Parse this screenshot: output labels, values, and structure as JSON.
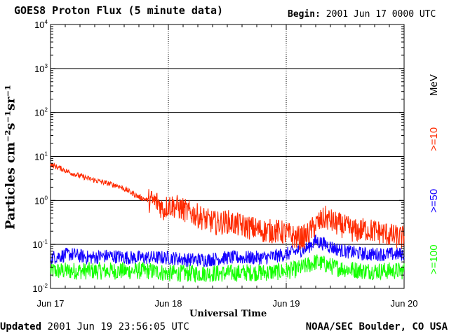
{
  "header": {
    "title": "GOES8 Proton Flux (5 minute data)",
    "begin_label": "Begin:",
    "begin_value": "2001 Jun 17 0000 UTC"
  },
  "footer": {
    "updated_label": "Updated",
    "updated_value": "2001 Jun 19 23:56:05 UTC",
    "credit": "NOAA/SEC Boulder, CO USA"
  },
  "chart_data": {
    "type": "line",
    "title": "GOES8 Proton Flux (5 minute data)",
    "xlabel": "Universal Time",
    "ylabel": "Particles cm⁻²s⁻¹sr⁻¹",
    "yscale": "log",
    "ylim": [
      0.01,
      10000
    ],
    "xlim": [
      0,
      72
    ],
    "x_units": "hours since 2001 Jun 17 0000 UTC",
    "x_ticks": [
      {
        "x": 0,
        "label": "Jun 17"
      },
      {
        "x": 24,
        "label": "Jun 18"
      },
      {
        "x": 48,
        "label": "Jun 19"
      },
      {
        "x": 72,
        "label": "Jun 20"
      }
    ],
    "y_ticks": [
      {
        "exp": -2,
        "label": "10",
        "sup": "-2"
      },
      {
        "exp": -1,
        "label": "10",
        "sup": "-1"
      },
      {
        "exp": 0,
        "label": "10",
        "sup": "0"
      },
      {
        "exp": 1,
        "label": "10",
        "sup": "1"
      },
      {
        "exp": 2,
        "label": "10",
        "sup": "2"
      },
      {
        "exp": 3,
        "label": "10",
        "sup": "3"
      },
      {
        "exp": 4,
        "label": "10",
        "sup": "4"
      }
    ],
    "legend_unit": "MeV",
    "series": [
      {
        "name": ">=10",
        "color": "#ff2a00",
        "x": [
          0,
          2,
          4,
          6,
          8,
          10,
          12,
          14,
          16,
          18,
          20,
          22,
          23,
          24,
          26,
          28,
          30,
          32,
          34,
          36,
          38,
          40,
          42,
          44,
          46,
          48,
          50,
          52,
          54,
          56,
          58,
          60,
          62,
          64,
          66,
          68,
          70,
          72
        ],
        "y": [
          6.5,
          5.4,
          4.3,
          3.6,
          3.1,
          2.7,
          2.4,
          2.1,
          1.6,
          1.2,
          1.0,
          0.9,
          0.6,
          0.8,
          0.7,
          0.55,
          0.45,
          0.35,
          0.3,
          0.33,
          0.28,
          0.25,
          0.22,
          0.2,
          0.2,
          0.18,
          0.14,
          0.15,
          0.28,
          0.4,
          0.3,
          0.25,
          0.2,
          0.22,
          0.2,
          0.18,
          0.15,
          0.14
        ]
      },
      {
        "name": ">=50",
        "color": "#1400ff",
        "x": [
          0,
          4,
          8,
          12,
          16,
          20,
          24,
          28,
          32,
          36,
          40,
          44,
          48,
          50,
          52,
          54,
          56,
          58,
          60,
          64,
          68,
          72
        ],
        "y": [
          0.05,
          0.06,
          0.05,
          0.055,
          0.05,
          0.05,
          0.05,
          0.045,
          0.045,
          0.05,
          0.05,
          0.05,
          0.06,
          0.07,
          0.08,
          0.12,
          0.1,
          0.08,
          0.07,
          0.06,
          0.06,
          0.06
        ]
      },
      {
        "name": ">=100",
        "color": "#14ff00",
        "x": [
          0,
          4,
          8,
          12,
          16,
          20,
          24,
          28,
          32,
          36,
          40,
          44,
          48,
          50,
          52,
          54,
          56,
          58,
          60,
          64,
          68,
          72
        ],
        "y": [
          0.025,
          0.025,
          0.025,
          0.025,
          0.025,
          0.025,
          0.022,
          0.022,
          0.022,
          0.022,
          0.023,
          0.023,
          0.025,
          0.027,
          0.032,
          0.04,
          0.035,
          0.03,
          0.028,
          0.025,
          0.025,
          0.025
        ]
      }
    ]
  }
}
